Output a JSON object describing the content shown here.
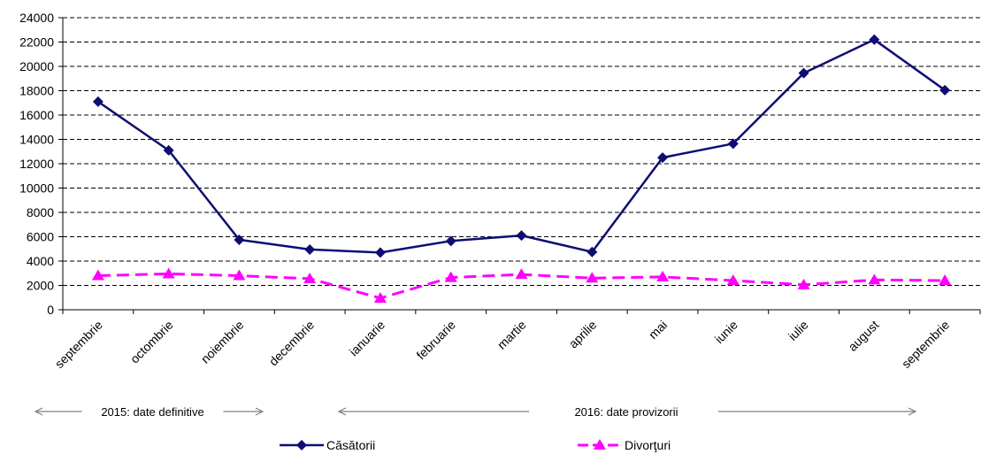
{
  "chart_data": {
    "type": "line",
    "title": "",
    "xlabel": "",
    "ylabel": "",
    "ylim": [
      0,
      24000
    ],
    "yticks": [
      0,
      2000,
      4000,
      6000,
      8000,
      10000,
      12000,
      14000,
      16000,
      18000,
      20000,
      22000,
      24000
    ],
    "grid": "horizontal-dashed",
    "legend_position": "bottom",
    "categories": [
      "septembrie",
      "octombrie",
      "noiembrie",
      "decembrie",
      "ianuarie",
      "februarie",
      "martie",
      "aprilie",
      "mai",
      "iunie",
      "iulie",
      "august",
      "septembrie"
    ],
    "series": [
      {
        "name": "Căsătorii",
        "color": "#0D0D73",
        "marker": "diamond",
        "line_style": "solid",
        "values": [
          17100,
          13100,
          5750,
          4950,
          4700,
          5650,
          6100,
          4750,
          12500,
          13650,
          19450,
          22200,
          18050
        ]
      },
      {
        "name": "Divorţuri",
        "color": "#FF00FF",
        "marker": "triangle",
        "line_style": "dashed",
        "values": [
          2800,
          2950,
          2800,
          2550,
          950,
          2650,
          2900,
          2600,
          2700,
          2400,
          2050,
          2450,
          2400
        ]
      }
    ],
    "period_annotations": [
      {
        "label": "2015: date definitive",
        "from_index": 0,
        "to_index": 3
      },
      {
        "label": "2016: date provizorii",
        "from_index": 4,
        "to_index": 12
      }
    ]
  }
}
